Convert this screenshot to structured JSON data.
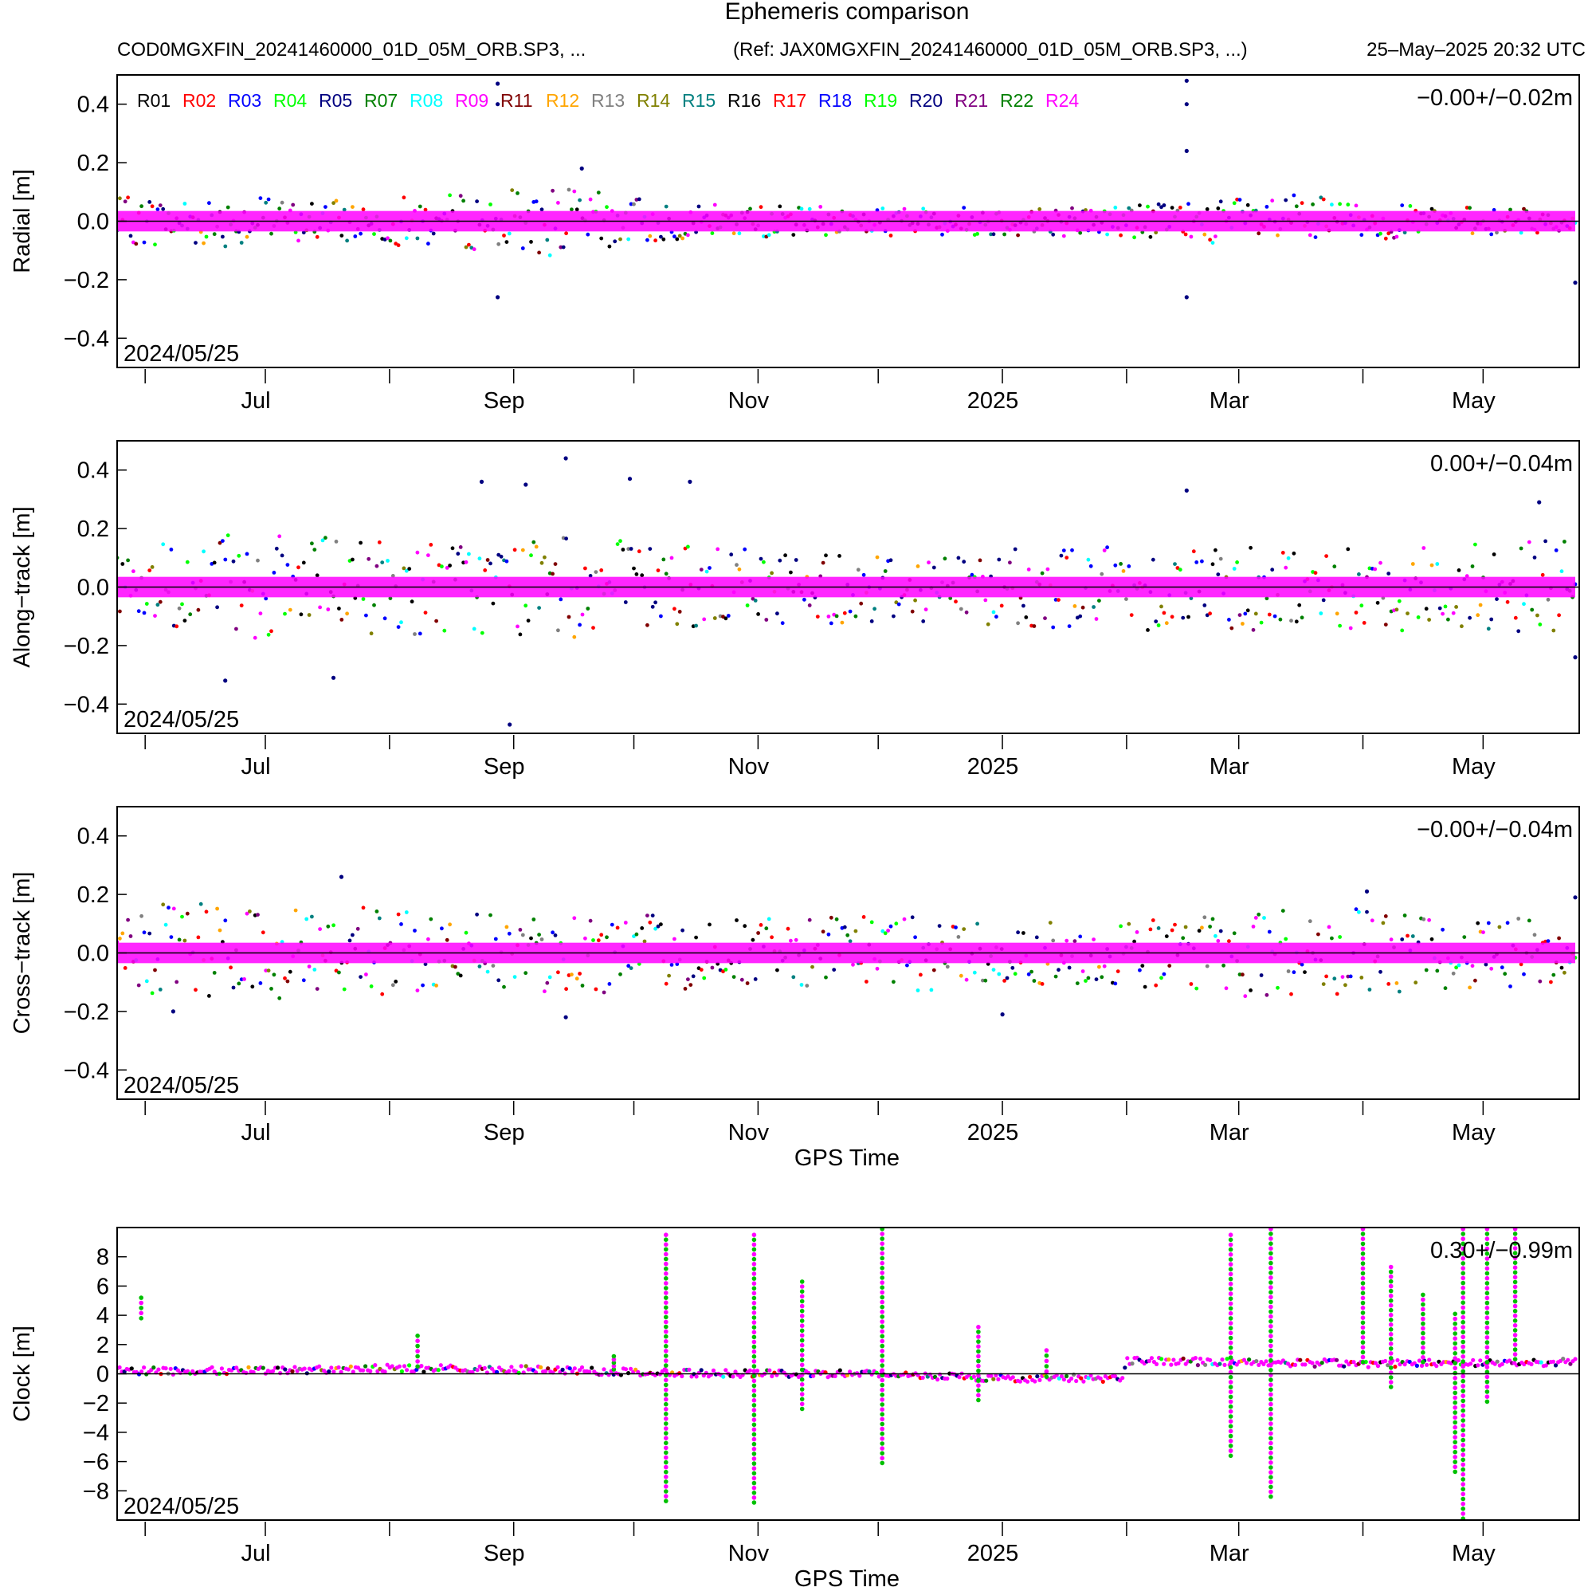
{
  "header": {
    "title": "Ephemeris comparison",
    "file": "COD0MGXFIN_20241460000_01D_05M_ORB.SP3, ...",
    "ref": "(Ref: JAX0MGXFIN_20241460000_01D_05M_ORB.SP3, ...)",
    "generated": "25–May–2025 20:32 UTC"
  },
  "legend": {
    "placement": "top-left",
    "items": [
      {
        "label": "R01",
        "color": "#000000"
      },
      {
        "label": "R02",
        "color": "#ff0000"
      },
      {
        "label": "R03",
        "color": "#0000ff"
      },
      {
        "label": "R04",
        "color": "#00ff00"
      },
      {
        "label": "R05",
        "color": "#000080"
      },
      {
        "label": "R07",
        "color": "#008000"
      },
      {
        "label": "R08",
        "color": "#00ffff"
      },
      {
        "label": "R09",
        "color": "#ff00ff"
      },
      {
        "label": "R11",
        "color": "#800000"
      },
      {
        "label": "R12",
        "color": "#ffa500"
      },
      {
        "label": "R13",
        "color": "#808080"
      },
      {
        "label": "R14",
        "color": "#808000"
      },
      {
        "label": "R15",
        "color": "#008080"
      },
      {
        "label": "R16",
        "color": "#000000"
      },
      {
        "label": "R17",
        "color": "#ff0000"
      },
      {
        "label": "R18",
        "color": "#0000ff"
      },
      {
        "label": "R19",
        "color": "#00ff00"
      },
      {
        "label": "R20",
        "color": "#000080"
      },
      {
        "label": "R21",
        "color": "#800080"
      },
      {
        "label": "R22",
        "color": "#008000"
      },
      {
        "label": "R24",
        "color": "#ff00ff"
      }
    ]
  },
  "chart_data": [
    {
      "type": "scatter",
      "panel": "radial",
      "ylabel": "Radial [m]",
      "xlabel": "",
      "ylim": [
        -0.5,
        0.5
      ],
      "xlim": [
        "2024-05-25",
        "2025-05-25"
      ],
      "yticks": [
        "0.4",
        "0.2",
        "0.0",
        "−0.2",
        "−0.4"
      ],
      "ytick_values": [
        0.4,
        0.2,
        0.0,
        -0.2,
        -0.4
      ],
      "xtick_labels": [
        "Jul",
        "Sep",
        "Nov",
        "2025",
        "Mar",
        "May"
      ],
      "xtick_dates": [
        "2024-07-01",
        "2024-09-01",
        "2024-11-01",
        "2025-01-01",
        "2025-03-01",
        "2025-05-01"
      ],
      "minor_tick_dates": [
        "2024-06-01",
        "2024-08-01",
        "2024-10-01",
        "2024-12-01",
        "2025-02-01",
        "2025-04-01"
      ],
      "date_label": "2024/05/25",
      "stats": "−0.00+/−0.02m",
      "zero_line": true,
      "grid": false,
      "envelope": {
        "dates": [
          "2024-05-25",
          "2024-06-15",
          "2024-07-15",
          "2024-08-15",
          "2024-09-10",
          "2024-10-15",
          "2024-11-15",
          "2024-12-15",
          "2025-01-15",
          "2025-02-15",
          "2025-03-15",
          "2025-04-15",
          "2025-05-25"
        ],
        "spread": [
          0.08,
          0.09,
          0.07,
          0.09,
          0.12,
          0.06,
          0.05,
          0.05,
          0.05,
          0.07,
          0.09,
          0.05,
          0.04
        ]
      },
      "outliers": [
        {
          "date": "2024-08-28",
          "value": 0.47
        },
        {
          "date": "2024-08-28",
          "value": 0.4
        },
        {
          "date": "2024-08-28",
          "value": -0.26
        },
        {
          "date": "2024-09-18",
          "value": 0.18
        },
        {
          "date": "2025-02-16",
          "value": 0.48
        },
        {
          "date": "2025-02-16",
          "value": 0.4
        },
        {
          "date": "2025-02-16",
          "value": 0.24
        },
        {
          "date": "2025-02-16",
          "value": -0.26
        },
        {
          "date": "2025-05-24",
          "value": -0.21
        }
      ]
    },
    {
      "type": "scatter",
      "panel": "along-track",
      "ylabel": "Along−track [m]",
      "xlabel": "",
      "ylim": [
        -0.5,
        0.5
      ],
      "xlim": [
        "2024-05-25",
        "2025-05-25"
      ],
      "yticks": [
        "0.4",
        "0.2",
        "0.0",
        "−0.2",
        "−0.4"
      ],
      "ytick_values": [
        0.4,
        0.2,
        0.0,
        -0.2,
        -0.4
      ],
      "xtick_labels": [
        "Jul",
        "Sep",
        "Nov",
        "2025",
        "Mar",
        "May"
      ],
      "xtick_dates": [
        "2024-07-01",
        "2024-09-01",
        "2024-11-01",
        "2025-01-01",
        "2025-03-01",
        "2025-05-01"
      ],
      "minor_tick_dates": [
        "2024-06-01",
        "2024-08-01",
        "2024-10-01",
        "2024-12-01",
        "2025-02-01",
        "2025-04-01"
      ],
      "date_label": "2024/05/25",
      "stats": "0.00+/−0.04m",
      "zero_line": true,
      "grid": false,
      "envelope": {
        "dates": [
          "2024-05-25",
          "2024-06-15",
          "2024-07-15",
          "2024-08-15",
          "2024-09-10",
          "2024-10-15",
          "2024-11-15",
          "2024-12-15",
          "2025-01-15",
          "2025-02-15",
          "2025-03-15",
          "2025-04-15",
          "2025-05-25"
        ],
        "spread": [
          0.14,
          0.18,
          0.17,
          0.16,
          0.18,
          0.14,
          0.13,
          0.12,
          0.14,
          0.15,
          0.16,
          0.16,
          0.16
        ]
      },
      "outliers": [
        {
          "date": "2024-08-24",
          "value": 0.36
        },
        {
          "date": "2024-08-31",
          "value": -0.47
        },
        {
          "date": "2024-09-14",
          "value": 0.44
        },
        {
          "date": "2024-09-30",
          "value": 0.37
        },
        {
          "date": "2024-10-15",
          "value": 0.36
        },
        {
          "date": "2024-09-04",
          "value": 0.35
        },
        {
          "date": "2025-02-16",
          "value": 0.33
        },
        {
          "date": "2025-05-15",
          "value": 0.29
        },
        {
          "date": "2024-06-21",
          "value": -0.32
        },
        {
          "date": "2024-07-18",
          "value": -0.31
        },
        {
          "date": "2025-05-24",
          "value": -0.24
        }
      ]
    },
    {
      "type": "scatter",
      "panel": "cross-track",
      "ylabel": "Cross−track [m]",
      "xlabel": "GPS Time",
      "ylim": [
        -0.5,
        0.5
      ],
      "xlim": [
        "2024-05-25",
        "2025-05-25"
      ],
      "yticks": [
        "0.4",
        "0.2",
        "0.0",
        "−0.2",
        "−0.4"
      ],
      "ytick_values": [
        0.4,
        0.2,
        0.0,
        -0.2,
        -0.4
      ],
      "xtick_labels": [
        "Jul",
        "Sep",
        "Nov",
        "2025",
        "Mar",
        "May"
      ],
      "xtick_dates": [
        "2024-07-01",
        "2024-09-01",
        "2024-11-01",
        "2025-01-01",
        "2025-03-01",
        "2025-05-01"
      ],
      "minor_tick_dates": [
        "2024-06-01",
        "2024-08-01",
        "2024-10-01",
        "2024-12-01",
        "2025-02-01",
        "2025-04-01"
      ],
      "date_label": "2024/05/25",
      "stats": "−0.00+/−0.04m",
      "zero_line": true,
      "grid": false,
      "envelope": {
        "dates": [
          "2024-05-25",
          "2024-06-15",
          "2024-07-15",
          "2024-08-15",
          "2024-09-10",
          "2024-10-15",
          "2024-11-15",
          "2024-12-15",
          "2025-01-15",
          "2025-02-15",
          "2025-03-15",
          "2025-04-15",
          "2025-05-25"
        ],
        "spread": [
          0.16,
          0.17,
          0.17,
          0.13,
          0.14,
          0.13,
          0.12,
          0.13,
          0.11,
          0.12,
          0.17,
          0.13,
          0.11
        ]
      },
      "outliers": [
        {
          "date": "2024-07-20",
          "value": 0.26
        },
        {
          "date": "2024-09-14",
          "value": -0.22
        },
        {
          "date": "2025-01-01",
          "value": -0.21
        },
        {
          "date": "2024-06-08",
          "value": -0.2
        },
        {
          "date": "2025-04-02",
          "value": 0.21
        },
        {
          "date": "2025-05-24",
          "value": 0.19
        }
      ]
    },
    {
      "type": "scatter",
      "panel": "clock",
      "ylabel": "Clock [m]",
      "xlabel": "GPS Time",
      "ylim": [
        -10,
        10
      ],
      "xlim": [
        "2024-05-25",
        "2025-05-25"
      ],
      "yticks": [
        "8",
        "6",
        "4",
        "2",
        "0",
        "−2",
        "−4",
        "−6",
        "−8"
      ],
      "ytick_values": [
        8,
        6,
        4,
        2,
        0,
        -2,
        -4,
        -6,
        -8
      ],
      "xtick_labels": [
        "Jul",
        "Sep",
        "Nov",
        "2025",
        "Mar",
        "May"
      ],
      "xtick_dates": [
        "2024-07-01",
        "2024-09-01",
        "2024-11-01",
        "2025-01-01",
        "2025-03-01",
        "2025-05-01"
      ],
      "minor_tick_dates": [
        "2024-06-01",
        "2024-08-01",
        "2024-10-01",
        "2024-12-01",
        "2025-02-01",
        "2025-04-01"
      ],
      "date_label": "2024/05/25",
      "stats": "0.30+/−0.99m",
      "zero_line": true,
      "grid": false,
      "baseline": {
        "dates": [
          "2024-05-25",
          "2024-07-01",
          "2024-08-01",
          "2024-09-01",
          "2024-10-01",
          "2024-11-01",
          "2024-12-01",
          "2025-01-01",
          "2025-01-31",
          "2025-02-01",
          "2025-03-01",
          "2025-04-01",
          "2025-05-25"
        ],
        "values": [
          0.2,
          0.2,
          0.4,
          0.3,
          0.1,
          0.0,
          0.0,
          -0.3,
          -0.3,
          0.9,
          0.8,
          0.7,
          0.8
        ]
      },
      "spikes": [
        {
          "date": "2024-05-31",
          "from": 3.8,
          "to": 5.2
        },
        {
          "date": "2024-08-08",
          "from": 0.5,
          "to": 2.6
        },
        {
          "date": "2024-09-26",
          "from": 0.3,
          "to": 1.2
        },
        {
          "date": "2024-10-09",
          "from": -8.7,
          "to": 9.5
        },
        {
          "date": "2024-10-31",
          "from": -8.8,
          "to": 9.5
        },
        {
          "date": "2024-11-12",
          "from": -2.4,
          "to": 6.3
        },
        {
          "date": "2024-12-02",
          "from": -6.1,
          "to": 9.9
        },
        {
          "date": "2024-12-26",
          "from": -1.8,
          "to": 3.2
        },
        {
          "date": "2025-01-12",
          "from": -0.2,
          "to": 1.6
        },
        {
          "date": "2025-02-27",
          "from": -5.6,
          "to": 9.5
        },
        {
          "date": "2025-03-09",
          "from": -8.4,
          "to": 9.9
        },
        {
          "date": "2025-04-01",
          "from": 0.8,
          "to": 9.9
        },
        {
          "date": "2025-04-08",
          "from": -0.9,
          "to": 7.3
        },
        {
          "date": "2025-04-16",
          "from": 0.8,
          "to": 5.4
        },
        {
          "date": "2025-04-24",
          "from": -6.7,
          "to": 4.1
        },
        {
          "date": "2025-04-26",
          "from": -9.9,
          "to": 9.9
        },
        {
          "date": "2025-05-02",
          "from": -1.9,
          "to": 9.9
        },
        {
          "date": "2025-05-09",
          "from": 1.0,
          "to": 9.9
        }
      ]
    }
  ]
}
